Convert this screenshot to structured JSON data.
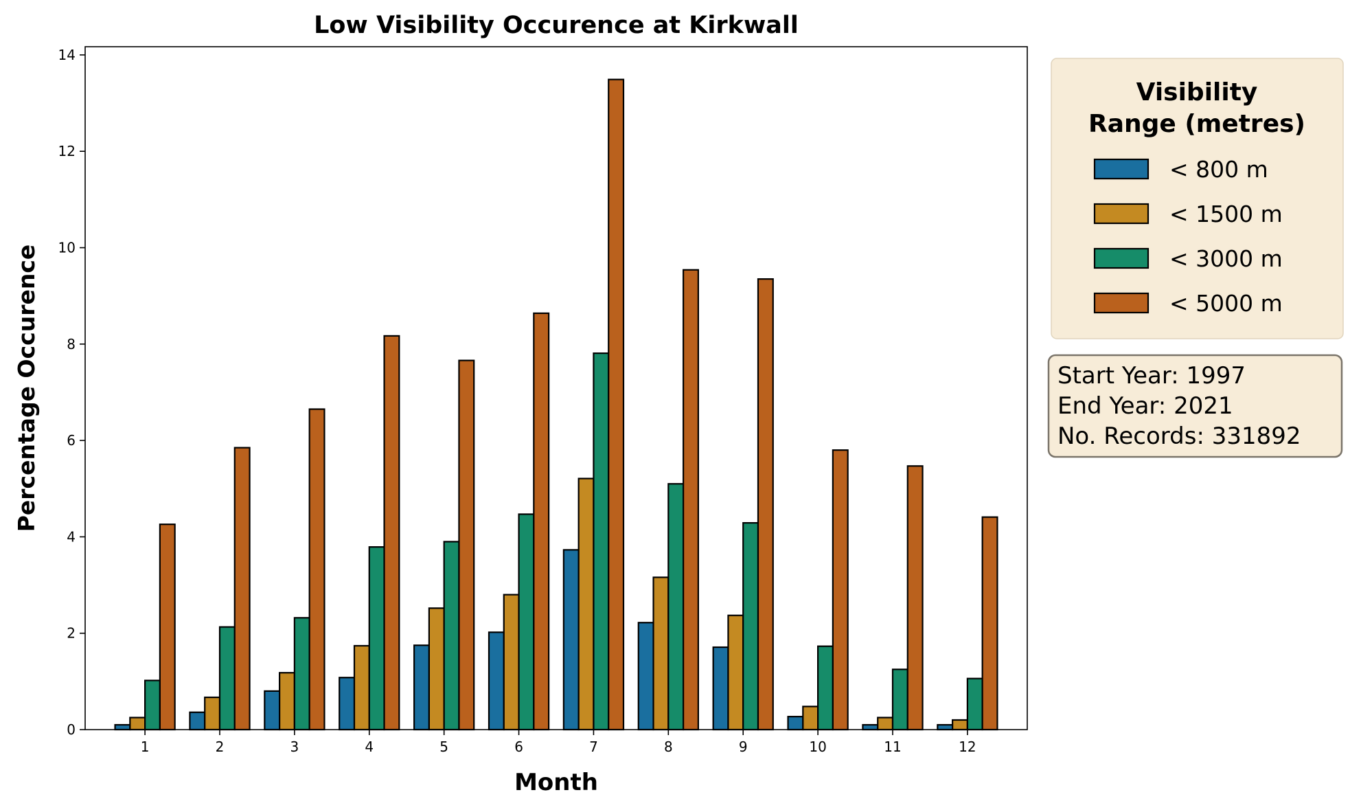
{
  "chart_data": {
    "type": "bar",
    "title": "Low Visibility Occurence at Kirkwall",
    "xlabel": "Month",
    "ylabel": "Percentage Occurence",
    "categories": [
      "1",
      "2",
      "3",
      "4",
      "5",
      "6",
      "7",
      "8",
      "9",
      "10",
      "11",
      "12"
    ],
    "ylim": [
      0,
      14.17
    ],
    "yticks": [
      "0",
      "2",
      "4",
      "6",
      "8",
      "10",
      "12",
      "14"
    ],
    "grid": false,
    "legend": {
      "title": "Visibility\nRange (metres)",
      "title_lines": [
        "Visibility",
        "Range (metres)"
      ],
      "placement": "outside-right-top",
      "background": "#f7ecd8"
    },
    "series": [
      {
        "name": "< 800 m",
        "color": "#1a6f9f",
        "values": [
          0.1,
          0.36,
          0.8,
          1.08,
          1.75,
          2.02,
          3.73,
          2.22,
          1.71,
          0.27,
          0.1,
          0.1
        ]
      },
      {
        "name": "< 1500 m",
        "color": "#c48a22",
        "values": [
          0.25,
          0.67,
          1.18,
          1.74,
          2.52,
          2.8,
          5.21,
          3.16,
          2.37,
          0.48,
          0.25,
          0.2
        ]
      },
      {
        "name": "< 3000 m",
        "color": "#168c69",
        "values": [
          1.02,
          2.13,
          2.32,
          3.79,
          3.9,
          4.47,
          7.81,
          5.1,
          4.29,
          1.73,
          1.25,
          1.06
        ]
      },
      {
        "name": "< 5000 m",
        "color": "#ba611d",
        "values": [
          4.26,
          5.85,
          6.65,
          8.17,
          7.66,
          8.64,
          13.49,
          9.54,
          9.35,
          5.8,
          5.47,
          4.41
        ]
      }
    ],
    "annotation": {
      "lines": [
        "Start Year: 1997",
        "End Year: 2021",
        "No. Records: 331892"
      ]
    }
  }
}
